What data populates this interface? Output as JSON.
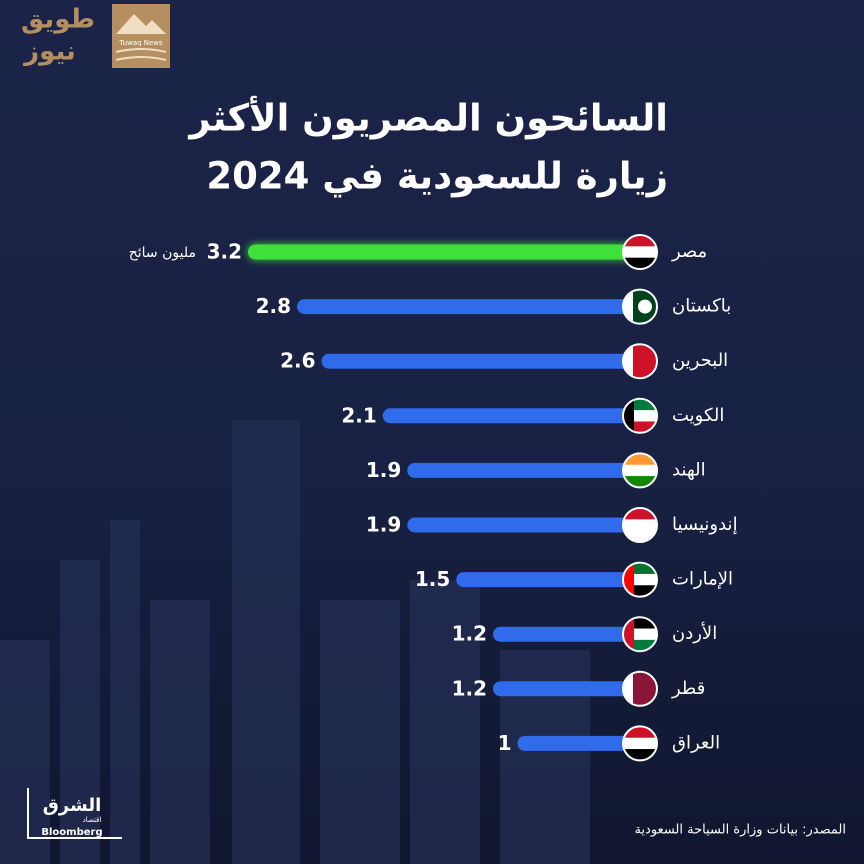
{
  "chart_data": {
    "type": "bar",
    "orientation": "horizontal",
    "title": [
      "السائحون المصريون الأكثر",
      "زيارة للسعودية في 2024"
    ],
    "categories": [
      "مصر",
      "باكستان",
      "البحرين",
      "الكويت",
      "الهند",
      "إندونيسيا",
      "الإمارات",
      "الأردن",
      "قطر",
      "العراق"
    ],
    "values": [
      3.2,
      2.8,
      2.6,
      2.1,
      1.9,
      1.9,
      1.5,
      1.2,
      1.2,
      1
    ],
    "unit_label": "مليون سائح",
    "highlight_color": "#3fe03a",
    "color": "#2f6bea",
    "source": "المصدر: بيانات وزارة السياحة السعودية"
  },
  "logo": {
    "brand_ar": [
      "طويق",
      "نيوز"
    ],
    "brand_en": "Tuwaq News"
  },
  "publisher": {
    "name_ar": "الشرق",
    "section_ar": "اقتصاد",
    "partner": "Bloomberg"
  }
}
